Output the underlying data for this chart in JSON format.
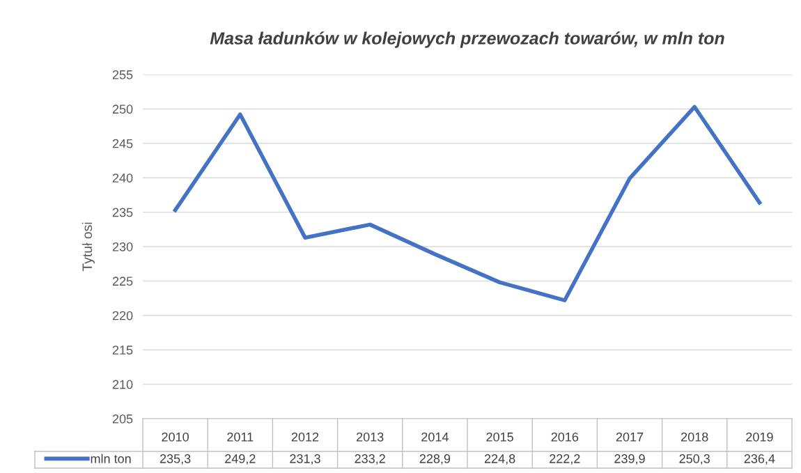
{
  "chart_data": {
    "type": "line",
    "title": "Masa ładunków w kolejowych przewozach towarów, w mln ton",
    "ylabel": "Tytuł osi",
    "categories": [
      "2010",
      "2011",
      "2012",
      "2013",
      "2014",
      "2015",
      "2016",
      "2017",
      "2018",
      "2019"
    ],
    "series": [
      {
        "name": "mln ton",
        "color": "#4472c4",
        "values": [
          235.3,
          249.2,
          231.3,
          233.2,
          228.9,
          224.8,
          222.2,
          239.9,
          250.3,
          236.4
        ],
        "value_labels": [
          "235,3",
          "249,2",
          "231,3",
          "233,2",
          "228,9",
          "224,8",
          "222,2",
          "239,9",
          "250,3",
          "236,4"
        ]
      }
    ],
    "ylim": [
      205,
      255
    ],
    "yticks": [
      205,
      210,
      215,
      220,
      225,
      230,
      235,
      240,
      245,
      250,
      255
    ],
    "grid": "y",
    "legend": "bottom",
    "marker": "none",
    "line_style": "solid"
  }
}
